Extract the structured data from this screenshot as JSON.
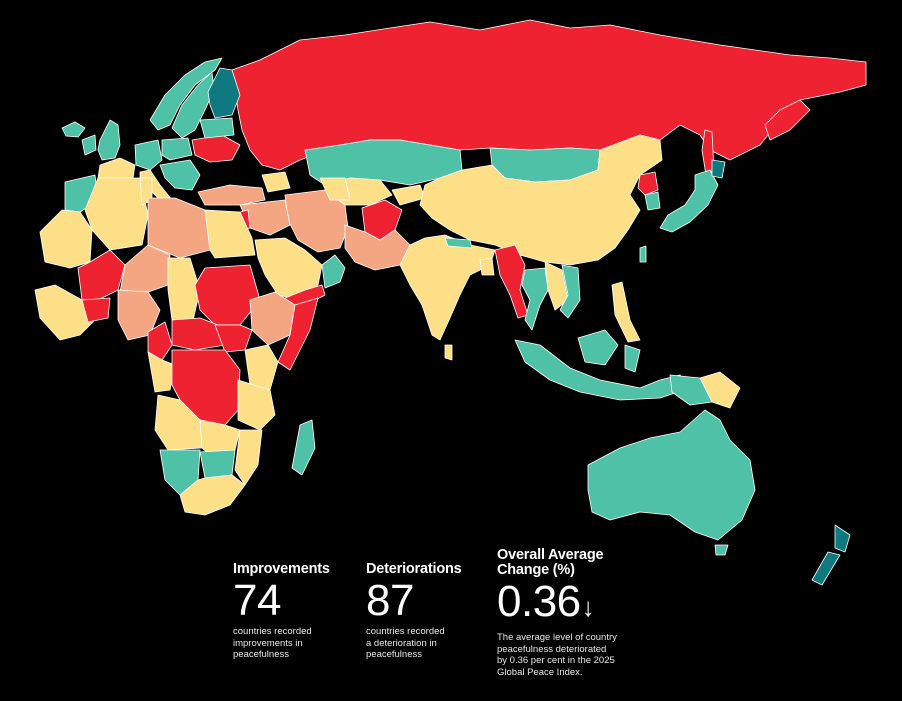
{
  "palette": {
    "background": "#000000",
    "improved_strong": "#0e7a80",
    "improved": "#4fc1a6",
    "little_change": "#fcdf87",
    "deteriorated": "#f4a582",
    "deteriorated_strong": "#ee2230",
    "border": "#ffffff",
    "text": "#ffffff"
  },
  "stats": {
    "improvements": {
      "heading": "Improvements",
      "value": "74",
      "description": [
        "countries recorded",
        "improvements in",
        "peacefulness"
      ]
    },
    "deteriorations": {
      "heading": "Deteriorations",
      "value": "87",
      "description": [
        "countries recorded",
        "a deterioration in",
        "peacefulness"
      ]
    },
    "overall": {
      "heading": [
        "Overall Average",
        "Change (%)"
      ],
      "value": "0.36",
      "arrow": "↓",
      "description": [
        "The average level of country",
        "peacefulness deteriorated",
        "by 0.36 per cent in the 2025",
        "Global Peace Index."
      ]
    }
  }
}
